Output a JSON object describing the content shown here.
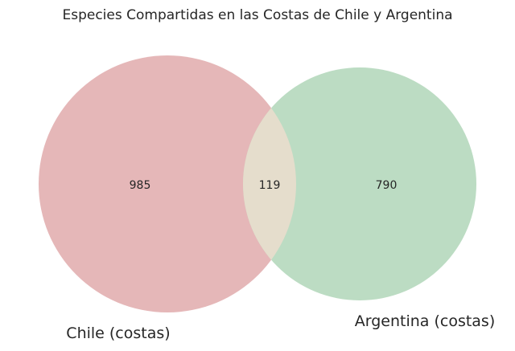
{
  "chart_data": {
    "type": "venn",
    "title": "Especies Compartidas en las Costas de Chile y Argentina",
    "sets": [
      {
        "name": "Chile (costas)",
        "only": 985,
        "color": "#e5b7b8"
      },
      {
        "name": "Argentina (costas)",
        "only": 790,
        "color": "#bcdcc3"
      }
    ],
    "intersection": {
      "value": 119,
      "color": "#e5ddcc"
    }
  }
}
